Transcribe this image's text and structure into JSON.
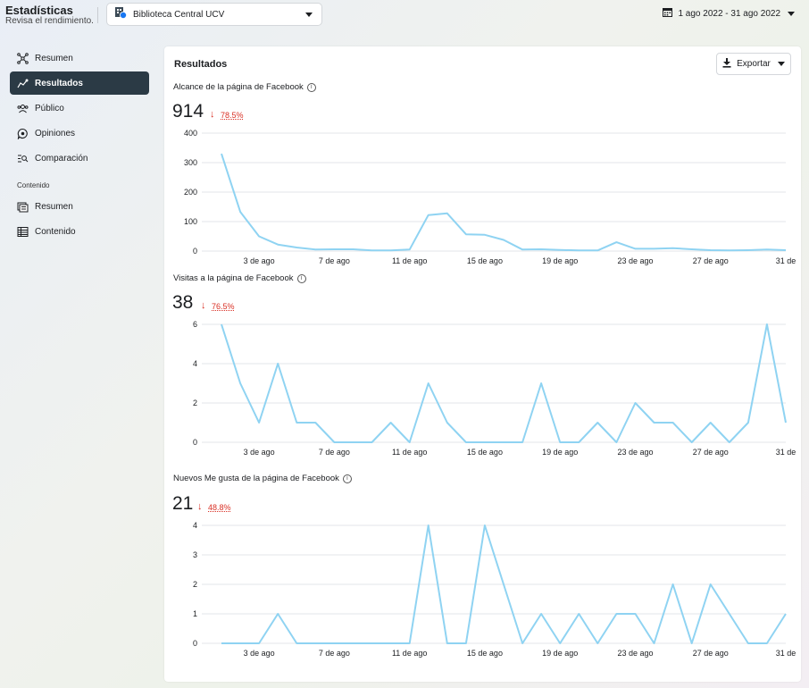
{
  "header": {
    "title": "Estadísticas",
    "subtitle": "Revisa el rendimiento.",
    "page_name": "Biblioteca Central UCV",
    "date_range": "1 ago 2022 - 31 ago 2022"
  },
  "sidebar": {
    "items": [
      {
        "label": "Resumen",
        "icon": "hub-icon"
      },
      {
        "label": "Resultados",
        "icon": "trend-icon"
      },
      {
        "label": "Público",
        "icon": "people-icon"
      },
      {
        "label": "Opiniones",
        "icon": "review-icon"
      },
      {
        "label": "Comparación",
        "icon": "compare-icon"
      }
    ],
    "section_label": "Contenido",
    "content_items": [
      {
        "label": "Resumen",
        "icon": "content-overview-icon"
      },
      {
        "label": "Contenido",
        "icon": "table-icon"
      }
    ]
  },
  "main": {
    "title": "Resultados",
    "export_label": "Exportar",
    "metrics": [
      {
        "label": "Alcance de la página de Facebook",
        "value": "914",
        "change": "78.5%",
        "trend": "down"
      },
      {
        "label": "Visitas a la página de Facebook",
        "value": "38",
        "change": "76.5%",
        "trend": "down"
      },
      {
        "label": "Nuevos Me gusta de la página de Facebook",
        "value": "21",
        "change": "48.8%",
        "trend": "down"
      }
    ]
  },
  "colors": {
    "line": "#8fd3f2",
    "decline": "#d93025",
    "active_nav": "#2b3a45"
  },
  "chart_data": [
    {
      "type": "line",
      "title": "Alcance de la página de Facebook",
      "x": [
        "1 ago",
        "2 ago",
        "3 ago",
        "4 ago",
        "5 ago",
        "6 ago",
        "7 ago",
        "8 ago",
        "9 ago",
        "10 ago",
        "11 ago",
        "12 ago",
        "13 ago",
        "14 ago",
        "15 ago",
        "16 ago",
        "17 ago",
        "18 ago",
        "19 ago",
        "20 ago",
        "21 ago",
        "22 ago",
        "23 ago",
        "24 ago",
        "25 ago",
        "26 ago",
        "27 ago",
        "28 ago",
        "29 ago",
        "30 ago",
        "31 ago"
      ],
      "x_tick_labels": [
        "3 de ago",
        "7 de ago",
        "11 de ago",
        "15 de ago",
        "19 de ago",
        "23 de ago",
        "27 de ago",
        "31 de"
      ],
      "y_ticks": [
        0,
        100,
        200,
        300,
        400
      ],
      "ylim": [
        0,
        400
      ],
      "grid": true,
      "values": [
        330,
        133,
        50,
        22,
        12,
        5,
        6,
        6,
        2,
        2,
        5,
        122,
        128,
        57,
        55,
        38,
        5,
        6,
        4,
        2,
        2,
        30,
        8,
        8,
        10,
        6,
        3,
        2,
        3,
        5,
        3
      ]
    },
    {
      "type": "line",
      "title": "Visitas a la página de Facebook",
      "x": [
        "1 ago",
        "2 ago",
        "3 ago",
        "4 ago",
        "5 ago",
        "6 ago",
        "7 ago",
        "8 ago",
        "9 ago",
        "10 ago",
        "11 ago",
        "12 ago",
        "13 ago",
        "14 ago",
        "15 ago",
        "16 ago",
        "17 ago",
        "18 ago",
        "19 ago",
        "20 ago",
        "21 ago",
        "22 ago",
        "23 ago",
        "24 ago",
        "25 ago",
        "26 ago",
        "27 ago",
        "28 ago",
        "29 ago",
        "30 ago",
        "31 ago"
      ],
      "x_tick_labels": [
        "3 de ago",
        "7 de ago",
        "11 de ago",
        "15 de ago",
        "19 de ago",
        "23 de ago",
        "27 de ago",
        "31 de"
      ],
      "y_ticks": [
        0,
        2,
        4,
        6
      ],
      "ylim": [
        0,
        6
      ],
      "grid": true,
      "values": [
        6,
        3,
        1,
        4,
        1,
        1,
        0,
        0,
        0,
        1,
        0,
        3,
        1,
        0,
        0,
        0,
        0,
        3,
        0,
        0,
        1,
        0,
        2,
        1,
        1,
        0,
        1,
        0,
        1,
        6,
        1
      ]
    },
    {
      "type": "line",
      "title": "Nuevos Me gusta de la página de Facebook",
      "x": [
        "1 ago",
        "2 ago",
        "3 ago",
        "4 ago",
        "5 ago",
        "6 ago",
        "7 ago",
        "8 ago",
        "9 ago",
        "10 ago",
        "11 ago",
        "12 ago",
        "13 ago",
        "14 ago",
        "15 ago",
        "16 ago",
        "17 ago",
        "18 ago",
        "19 ago",
        "20 ago",
        "21 ago",
        "22 ago",
        "23 ago",
        "24 ago",
        "25 ago",
        "26 ago",
        "27 ago",
        "28 ago",
        "29 ago",
        "30 ago",
        "31 ago"
      ],
      "x_tick_labels": [
        "3 de ago",
        "7 de ago",
        "11 de ago",
        "15 de ago",
        "19 de ago",
        "23 de ago",
        "27 de ago",
        "31 de"
      ],
      "y_ticks": [
        0,
        1,
        2,
        3,
        4
      ],
      "ylim": [
        0,
        4
      ],
      "grid": true,
      "values": [
        0,
        0,
        0,
        1,
        0,
        0,
        0,
        0,
        0,
        0,
        0,
        4,
        0,
        0,
        4,
        2,
        0,
        1,
        0,
        1,
        0,
        1,
        1,
        0,
        2,
        0,
        2,
        1,
        0,
        0,
        1
      ]
    }
  ]
}
